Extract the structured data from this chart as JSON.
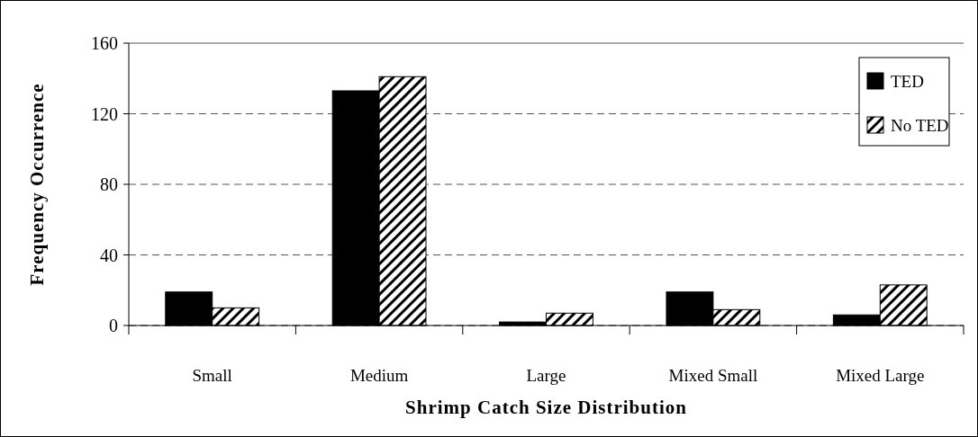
{
  "chart_data": {
    "type": "bar",
    "xlabel": "Shrimp Catch Size Distribution",
    "ylabel": "Frequency Occurrence",
    "categories": [
      "Small",
      "Medium",
      "Large",
      "Mixed Small",
      "Mixed Large"
    ],
    "series": [
      {
        "name": "TED",
        "color": "#000000",
        "values": [
          19,
          133,
          2,
          19,
          6
        ]
      },
      {
        "name": "No TED",
        "color": "#000000",
        "values": [
          10,
          141,
          7,
          9,
          23
        ]
      }
    ],
    "ylim": [
      0,
      160
    ],
    "yticks": [
      0,
      40,
      80,
      120,
      160
    ],
    "grid": "y",
    "legend": "top right"
  }
}
